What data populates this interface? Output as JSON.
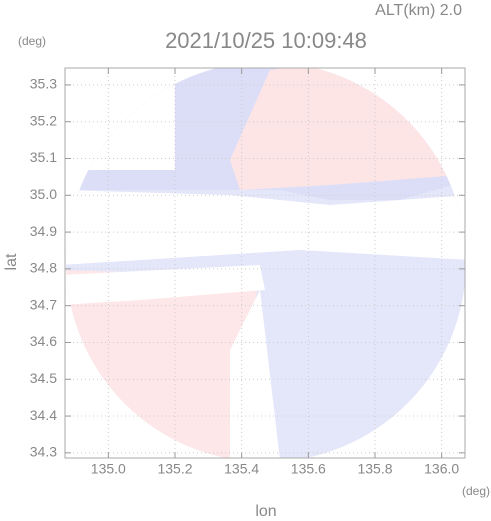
{
  "chart_data": {
    "type": "map",
    "title": "2021/10/25 10:09:48",
    "annotation": "ALT(km) 2.0",
    "xlabel": "lon",
    "ylabel": "lat",
    "xunit": "(deg)",
    "yunit": "(deg)",
    "xlim": [
      134.87,
      136.07
    ],
    "ylim": [
      34.286,
      35.346
    ],
    "xticks": [
      {
        "value": 135,
        "label": "135.0"
      },
      135.2,
      135.4,
      135.6,
      135.8,
      {
        "value": 136,
        "label": "136.0"
      }
    ],
    "yticks": [
      34.3,
      34.4,
      34.5,
      34.6,
      34.7,
      34.8,
      34.9,
      {
        "value": 35,
        "label": "35.0"
      },
      35.1,
      35.2,
      35.3
    ],
    "grid": true
  }
}
